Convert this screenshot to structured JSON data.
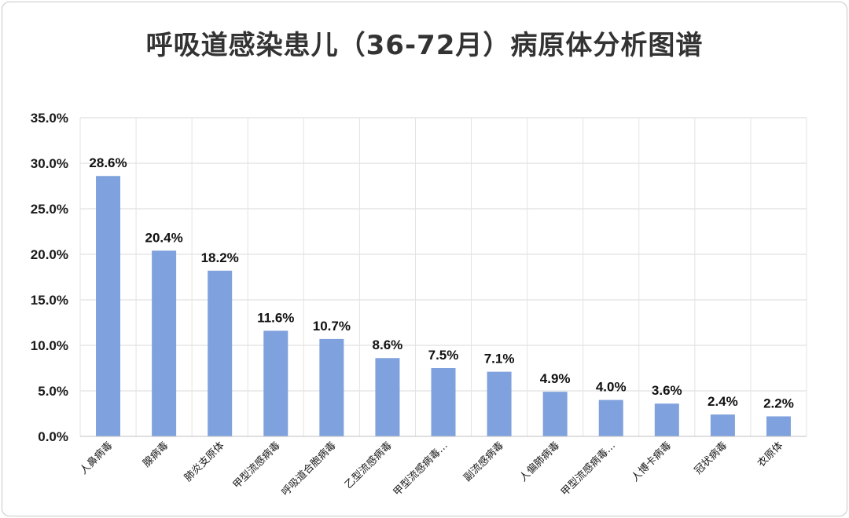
{
  "title": "呼吸道感染患儿（36-72月）病原体分析图谱",
  "chart_data": {
    "type": "bar",
    "title": "呼吸道感染患儿（36-72月）病原体分析图谱",
    "categories": [
      "人鼻病毒",
      "腺病毒",
      "肺炎支原体",
      "甲型流感病毒",
      "呼吸道合胞病毒",
      "乙型流感病毒",
      "甲型流感病毒…",
      "副流感病毒",
      "人偏肺病毒",
      "甲型流感病毒…",
      "人博卡病毒",
      "冠状病毒",
      "衣原体"
    ],
    "values": [
      28.6,
      20.4,
      18.2,
      11.6,
      10.7,
      8.6,
      7.5,
      7.1,
      4.9,
      4.0,
      3.6,
      2.4,
      2.2
    ],
    "value_labels": [
      "28.6%",
      "20.4%",
      "18.2%",
      "11.6%",
      "10.7%",
      "8.6%",
      "7.5%",
      "7.1%",
      "4.9%",
      "4.0%",
      "3.6%",
      "2.4%",
      "2.2%"
    ],
    "y_ticks": [
      "0.0%",
      "5.0%",
      "10.0%",
      "15.0%",
      "20.0%",
      "25.0%",
      "30.0%",
      "35.0%"
    ],
    "ylim": [
      0,
      35
    ],
    "xlabel": "",
    "ylabel": "",
    "grid": true,
    "legend": "none",
    "bar_color": "#7fa1dd"
  }
}
